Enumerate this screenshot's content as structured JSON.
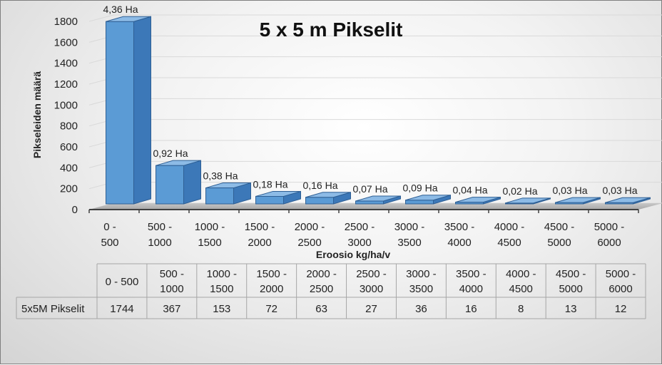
{
  "chart_data": {
    "type": "bar",
    "title": "5 x 5 m Pikselit",
    "xlabel": "Eroosio kg/ha/v",
    "ylabel": "Pikseleiden määrä",
    "ylim": [
      0,
      1800
    ],
    "yticks": [
      0,
      200,
      400,
      600,
      800,
      1000,
      1200,
      1400,
      1600,
      1800
    ],
    "grid": true,
    "categories": [
      [
        "0 -",
        "500"
      ],
      [
        "500 -",
        "1000"
      ],
      [
        "1000 -",
        "1500"
      ],
      [
        "1500 -",
        "2000"
      ],
      [
        "2000 -",
        "2500"
      ],
      [
        "2500 -",
        "3000"
      ],
      [
        "3000 -",
        "3500"
      ],
      [
        "3500 -",
        "4000"
      ],
      [
        "4000 -",
        "4500"
      ],
      [
        "4500 -",
        "5000"
      ],
      [
        "5000 -",
        "6000"
      ]
    ],
    "table_categories": [
      [
        "0 - 500"
      ],
      [
        "500 -",
        "1000"
      ],
      [
        "1000 -",
        "1500"
      ],
      [
        "1500 -",
        "2000"
      ],
      [
        "2000 -",
        "2500"
      ],
      [
        "2500 -",
        "3000"
      ],
      [
        "3000 -",
        "3500"
      ],
      [
        "3500 -",
        "4000"
      ],
      [
        "4000 -",
        "4500"
      ],
      [
        "4500 -",
        "5000"
      ],
      [
        "5000 -",
        "6000"
      ]
    ],
    "series": [
      {
        "name": "5x5M Pikselit",
        "values": [
          1744,
          367,
          153,
          72,
          63,
          27,
          36,
          16,
          8,
          13,
          12
        ],
        "data_labels": [
          "4,36 Ha",
          "0,92 Ha",
          "0,38 Ha",
          "0,18 Ha",
          "0,16 Ha",
          "0,07 Ha",
          "0,09 Ha",
          "0,04 Ha",
          "0,02 Ha",
          "0,03 Ha",
          "0,03 Ha"
        ],
        "color": "#5b9bd5"
      }
    ]
  }
}
